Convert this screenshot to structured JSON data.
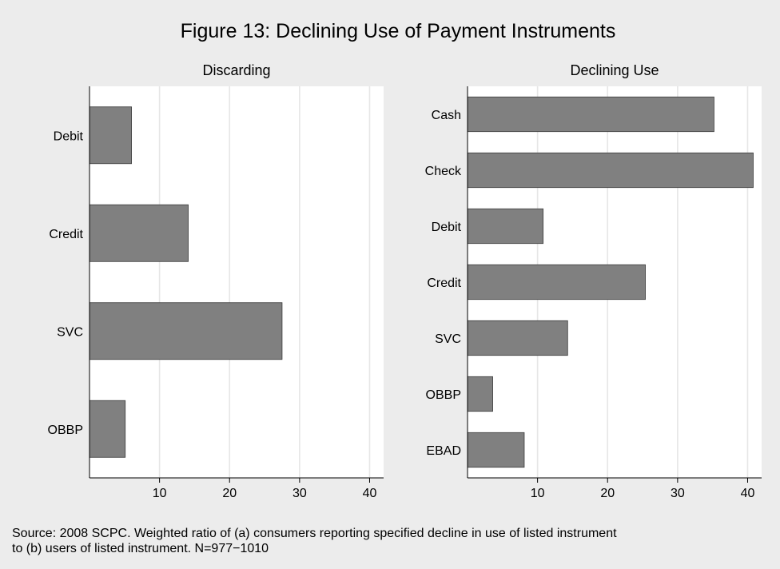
{
  "figure": {
    "title": "Figure 13: Declining Use of Payment Instruments",
    "note_lines": [
      "Source: 2008 SCPC.  Weighted ratio of (a) consumers reporting specified decline in use of listed instrument",
      "to (b) users of listed instrument.  N=977−1010"
    ]
  },
  "colors": {
    "bar": "#808080",
    "bar_outline": "#3a3a3a",
    "background": "#ececec",
    "panel": "#ffffff",
    "grid": "#e6e6e6"
  },
  "chart_data": [
    {
      "type": "bar",
      "orientation": "horizontal",
      "title": "Discarding",
      "categories": [
        "Debit",
        "Credit",
        "SVC",
        "OBBP"
      ],
      "values": [
        6,
        14.1,
        27.5,
        5.1
      ],
      "xticks": [
        10,
        20,
        30,
        40
      ],
      "xlim": [
        0,
        42
      ],
      "grid": true
    },
    {
      "type": "bar",
      "orientation": "horizontal",
      "title": "Declining Use",
      "categories": [
        "Cash",
        "Check",
        "Debit",
        "Credit",
        "SVC",
        "OBBP",
        "EBAD"
      ],
      "values": [
        35.2,
        40.8,
        10.8,
        25.4,
        14.3,
        3.6,
        8.1
      ],
      "xticks": [
        10,
        20,
        30,
        40
      ],
      "xlim": [
        0,
        42
      ],
      "grid": true
    }
  ]
}
